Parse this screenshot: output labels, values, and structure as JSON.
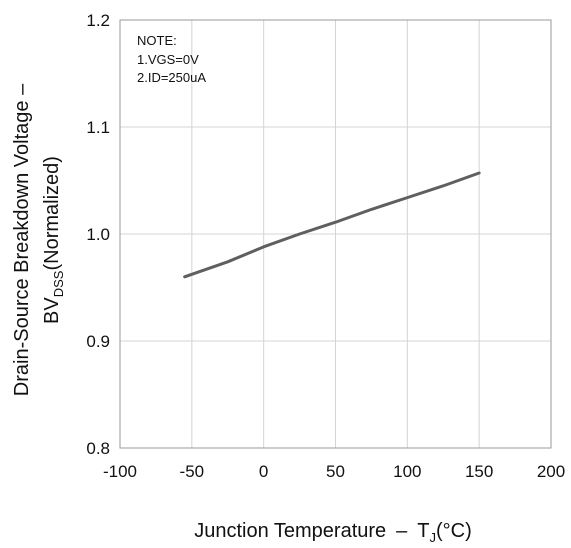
{
  "chart_data": {
    "type": "line",
    "xlabel_main": "Junction Temperature",
    "xlabel_dash": "–",
    "xlabel_sym": "T",
    "xlabel_sub": "J",
    "xlabel_unit": "(°C)",
    "ylabel_line1": "Drain-Source Breakdown Voltage –",
    "ylabel_sym": "BV",
    "ylabel_sub": "DSS",
    "ylabel_rest": "(Normalized)",
    "xlim": [
      -100,
      200
    ],
    "ylim": [
      0.8,
      1.2
    ],
    "x_ticks": [
      "-100",
      "-50",
      "0",
      "50",
      "100",
      "150",
      "200"
    ],
    "y_ticks": [
      "0.8",
      "0.9",
      "1.0",
      "1.1",
      "1.2"
    ],
    "grid": true,
    "note": [
      "NOTE:",
      "1.VGS=0V",
      "2.ID=250uA"
    ],
    "series": [
      {
        "color": "#5f5f5f",
        "x": [
          -55,
          -25,
          0,
          25,
          50,
          75,
          100,
          125,
          150
        ],
        "y": [
          0.96,
          0.974,
          0.988,
          1.0,
          1.011,
          1.023,
          1.034,
          1.045,
          1.057
        ]
      }
    ]
  }
}
